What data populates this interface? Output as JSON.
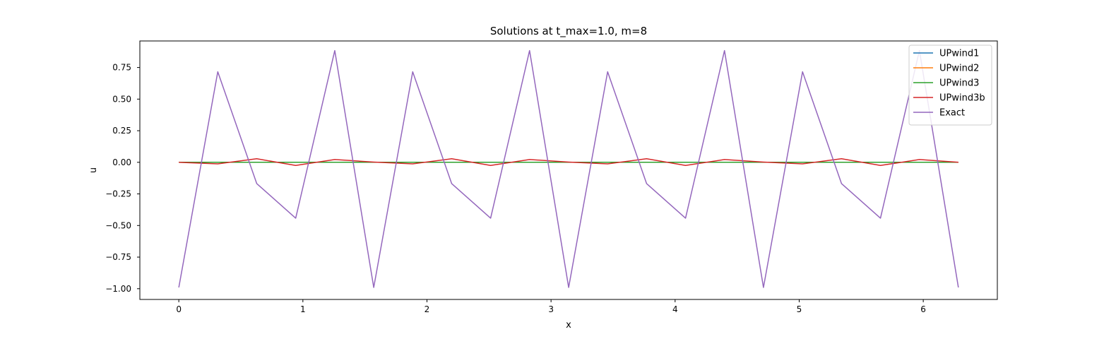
{
  "chart_data": {
    "type": "line",
    "title": "Solutions at t_max=1.0, m=8",
    "xlabel": "x",
    "ylabel": "u",
    "xlim": [
      -0.314,
      6.597
    ],
    "ylim": [
      -1.085,
      0.96
    ],
    "xticks": [
      0,
      1,
      2,
      3,
      4,
      5,
      6
    ],
    "xtick_labels": [
      "0",
      "1",
      "2",
      "3",
      "4",
      "5",
      "6"
    ],
    "yticks": [
      -1.0,
      -0.75,
      -0.5,
      -0.25,
      0.0,
      0.25,
      0.5,
      0.75
    ],
    "ytick_labels": [
      "−1.00",
      "−0.75",
      "−0.50",
      "−0.25",
      "0.00",
      "0.25",
      "0.50",
      "0.75"
    ],
    "grid": false,
    "legend_position": "top-right",
    "x": [
      0,
      0.314,
      0.628,
      0.942,
      1.257,
      1.571,
      1.885,
      2.199,
      2.513,
      2.827,
      3.142,
      3.456,
      3.77,
      4.084,
      4.398,
      4.712,
      5.027,
      5.341,
      5.655,
      5.969,
      6.283
    ],
    "series": [
      {
        "name": "UPwind1",
        "color": "#1f77b4",
        "values": [
          0,
          0,
          0,
          0,
          0,
          0,
          0,
          0,
          0,
          0,
          0,
          0,
          0,
          0,
          0,
          0,
          0,
          0,
          0,
          0,
          0
        ]
      },
      {
        "name": "UPwind2",
        "color": "#ff7f0e",
        "values": [
          0,
          0,
          0,
          0,
          0,
          0,
          0,
          0,
          0,
          0,
          0,
          0,
          0,
          0,
          0,
          0,
          0,
          0,
          0,
          0,
          0
        ]
      },
      {
        "name": "UPwind3",
        "color": "#2ca02c",
        "values": [
          0,
          0,
          0,
          0,
          0,
          0,
          0,
          0,
          0,
          0,
          0,
          0,
          0,
          0,
          0,
          0,
          0,
          0,
          0,
          0,
          0
        ]
      },
      {
        "name": "UPwind3b",
        "color": "#d62728",
        "values": [
          0.0,
          -0.012,
          0.028,
          -0.025,
          0.022,
          0.002,
          -0.012,
          0.028,
          -0.025,
          0.022,
          0.002,
          -0.012,
          0.028,
          -0.025,
          0.022,
          0.002,
          -0.012,
          0.028,
          -0.025,
          0.022,
          0.0
        ]
      },
      {
        "name": "Exact",
        "color": "#9467bd",
        "values": [
          -0.99,
          0.716,
          -0.168,
          -0.442,
          0.884,
          -0.99,
          0.716,
          -0.168,
          -0.442,
          0.884,
          -0.99,
          0.716,
          -0.168,
          -0.442,
          0.884,
          -0.99,
          0.716,
          -0.168,
          -0.442,
          0.884,
          -0.99
        ]
      }
    ]
  }
}
